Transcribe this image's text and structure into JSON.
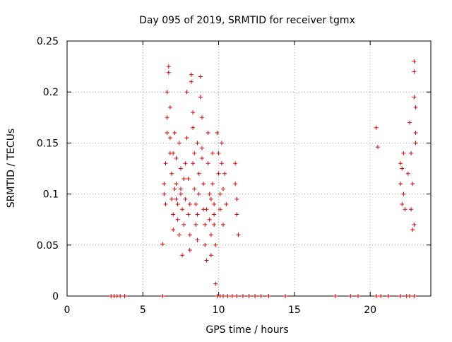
{
  "chart_data": {
    "type": "scatter",
    "title": "Day 095 of 2019, SRMTID for receiver tgmx",
    "xlabel": "GPS time / hours",
    "ylabel": "SRMTID / TECUs",
    "xlim": [
      0,
      24
    ],
    "ylim": [
      0,
      0.25
    ],
    "grid": true,
    "marker": "+",
    "color": "#e00000",
    "x_ticks": [
      0,
      5,
      10,
      15,
      20
    ],
    "y_ticks": [
      0,
      0.05,
      0.1,
      0.15,
      0.2,
      0.25
    ],
    "x_tick_labels": [
      "0",
      "5",
      "10",
      "15",
      "20"
    ],
    "y_tick_labels": [
      "0",
      "0.05",
      "0.1",
      "0.15",
      "0.2",
      "0.25"
    ],
    "series": [
      {
        "name": "SRMTID",
        "points": [
          [
            6.3,
            0.051
          ],
          [
            6.4,
            0.11
          ],
          [
            6.5,
            0.09
          ],
          [
            6.5,
            0.13
          ],
          [
            6.6,
            0.16
          ],
          [
            6.6,
            0.2
          ],
          [
            6.7,
            0.225
          ],
          [
            6.7,
            0.219
          ],
          [
            6.8,
            0.185
          ],
          [
            6.8,
            0.14
          ],
          [
            6.9,
            0.12
          ],
          [
            6.9,
            0.095
          ],
          [
            7.0,
            0.08
          ],
          [
            7.0,
            0.065
          ],
          [
            7.1,
            0.105
          ],
          [
            7.1,
            0.16
          ],
          [
            7.2,
            0.135
          ],
          [
            7.2,
            0.11
          ],
          [
            7.3,
            0.09
          ],
          [
            7.3,
            0.075
          ],
          [
            7.4,
            0.06
          ],
          [
            7.4,
            0.15
          ],
          [
            7.5,
            0.125
          ],
          [
            7.5,
            0.1
          ],
          [
            7.6,
            0.04
          ],
          [
            7.6,
            0.085
          ],
          [
            7.7,
            0.07
          ],
          [
            7.8,
            0.13
          ],
          [
            7.8,
            0.095
          ],
          [
            7.9,
            0.2
          ],
          [
            7.9,
            0.155
          ],
          [
            8.0,
            0.115
          ],
          [
            8.0,
            0.08
          ],
          [
            8.1,
            0.06
          ],
          [
            8.1,
            0.045
          ],
          [
            8.2,
            0.217
          ],
          [
            8.2,
            0.21
          ],
          [
            8.3,
            0.18
          ],
          [
            8.3,
            0.165
          ],
          [
            8.4,
            0.14
          ],
          [
            8.4,
            0.105
          ],
          [
            8.5,
            0.09
          ],
          [
            8.5,
            0.07
          ],
          [
            8.6,
            0.055
          ],
          [
            8.6,
            0.15
          ],
          [
            8.7,
            0.12
          ],
          [
            8.7,
            0.1
          ],
          [
            8.8,
            0.215
          ],
          [
            8.8,
            0.195
          ],
          [
            8.9,
            0.175
          ],
          [
            8.9,
            0.135
          ],
          [
            9.0,
            0.11
          ],
          [
            9.0,
            0.085
          ],
          [
            9.1,
            0.07
          ],
          [
            9.1,
            0.05
          ],
          [
            9.2,
            0.035
          ],
          [
            9.3,
            0.16
          ],
          [
            9.3,
            0.13
          ],
          [
            9.4,
            0.1
          ],
          [
            9.4,
            0.075
          ],
          [
            9.5,
            0.06
          ],
          [
            9.5,
            0.04
          ],
          [
            9.6,
            0.14
          ],
          [
            9.6,
            0.11
          ],
          [
            9.7,
            0.09
          ],
          [
            9.7,
            0.07
          ],
          [
            9.8,
            0.05
          ],
          [
            9.8,
            0.012
          ],
          [
            9.9,
            0.16
          ],
          [
            10.0,
            0.14
          ],
          [
            10.0,
            0.12
          ],
          [
            10.1,
            0.1
          ],
          [
            10.1,
            0.085
          ],
          [
            10.2,
            0.15
          ],
          [
            10.2,
            0.13
          ],
          [
            10.3,
            0.07
          ],
          [
            10.4,
            0.12
          ],
          [
            10.5,
            0.09
          ],
          [
            11.1,
            0.13
          ],
          [
            11.1,
            0.11
          ],
          [
            11.2,
            0.095
          ],
          [
            11.2,
            0.08
          ],
          [
            11.3,
            0.06
          ],
          [
            6.6,
            0.175
          ],
          [
            6.8,
            0.155
          ],
          [
            7.0,
            0.14
          ],
          [
            7.5,
            0.105
          ],
          [
            8.1,
            0.09
          ],
          [
            8.6,
            0.08
          ],
          [
            9.2,
            0.085
          ],
          [
            9.7,
            0.08
          ],
          [
            10.3,
            0.105
          ],
          [
            6.4,
            0.1
          ],
          [
            7.2,
            0.095
          ],
          [
            7.7,
            0.115
          ],
          [
            8.3,
            0.13
          ],
          [
            8.9,
            0.145
          ],
          [
            9.5,
            0.095
          ],
          [
            20.4,
            0.165
          ],
          [
            20.5,
            0.146
          ],
          [
            22.0,
            0.13
          ],
          [
            22.0,
            0.11
          ],
          [
            22.1,
            0.09
          ],
          [
            22.1,
            0.125
          ],
          [
            22.2,
            0.14
          ],
          [
            22.2,
            0.1
          ],
          [
            22.3,
            0.085
          ],
          [
            22.5,
            0.12
          ],
          [
            22.6,
            0.17
          ],
          [
            22.7,
            0.14
          ],
          [
            22.7,
            0.085
          ],
          [
            22.8,
            0.065
          ],
          [
            22.8,
            0.11
          ],
          [
            22.9,
            0.195
          ],
          [
            22.9,
            0.23
          ],
          [
            22.9,
            0.22
          ],
          [
            23.0,
            0.185
          ],
          [
            23.0,
            0.16
          ],
          [
            23.0,
            0.15
          ],
          [
            22.9,
            0.07
          ],
          [
            2.9,
            0
          ],
          [
            3.1,
            0
          ],
          [
            3.3,
            0
          ],
          [
            3.5,
            0
          ],
          [
            3.8,
            0
          ],
          [
            6.3,
            0
          ],
          [
            9.9,
            0
          ],
          [
            10.1,
            0
          ],
          [
            10.3,
            0
          ],
          [
            10.6,
            0
          ],
          [
            10.9,
            0
          ],
          [
            11.2,
            0
          ],
          [
            11.6,
            0
          ],
          [
            12.0,
            0
          ],
          [
            12.4,
            0
          ],
          [
            12.8,
            0
          ],
          [
            13.3,
            0
          ],
          [
            14.4,
            0
          ],
          [
            17.7,
            0
          ],
          [
            18.7,
            0
          ],
          [
            19.2,
            0
          ],
          [
            20.4,
            0
          ],
          [
            20.7,
            0
          ],
          [
            21.2,
            0
          ],
          [
            22.0,
            0
          ],
          [
            22.4,
            0
          ],
          [
            22.6,
            0
          ],
          [
            22.9,
            0
          ]
        ]
      }
    ]
  }
}
